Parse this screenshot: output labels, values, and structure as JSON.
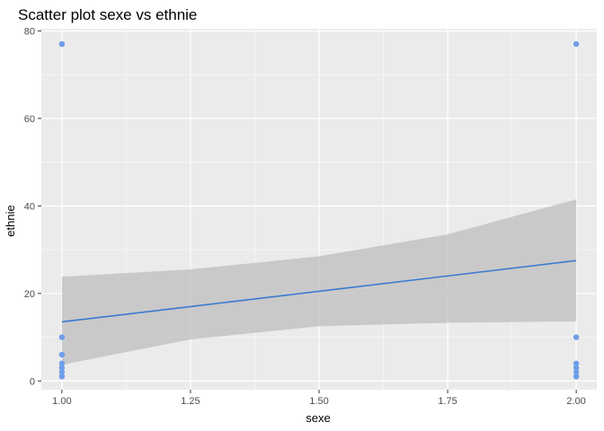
{
  "chart_data": {
    "type": "scatter",
    "title": "Scatter plot sexe vs ethnie",
    "xlabel": "sexe",
    "ylabel": "ethnie",
    "xlim": [
      0.96,
      2.04
    ],
    "ylim": [
      -2,
      80.5
    ],
    "x_ticks": [
      1.0,
      1.25,
      1.5,
      1.75,
      2.0
    ],
    "x_tick_labels": [
      "1.00",
      "1.25",
      "1.50",
      "1.75",
      "2.00"
    ],
    "y_ticks": [
      0,
      20,
      40,
      60,
      80
    ],
    "y_tick_labels": [
      "0",
      "20",
      "40",
      "60",
      "80"
    ],
    "grid": true,
    "points": [
      {
        "x": 1,
        "y": 77
      },
      {
        "x": 1,
        "y": 10
      },
      {
        "x": 1,
        "y": 6
      },
      {
        "x": 1,
        "y": 4
      },
      {
        "x": 1,
        "y": 3
      },
      {
        "x": 1,
        "y": 2
      },
      {
        "x": 1,
        "y": 1
      },
      {
        "x": 2,
        "y": 77
      },
      {
        "x": 2,
        "y": 10
      },
      {
        "x": 2,
        "y": 4
      },
      {
        "x": 2,
        "y": 3
      },
      {
        "x": 2,
        "y": 2
      },
      {
        "x": 2,
        "y": 1
      }
    ],
    "trend_line": {
      "x": [
        1,
        2
      ],
      "y": [
        13.5,
        27.5
      ]
    },
    "confidence_band": {
      "x": [
        1.0,
        1.25,
        1.5,
        1.75,
        2.0
      ],
      "upper": [
        23.8,
        25.5,
        28.5,
        33.5,
        41.5
      ],
      "lower": [
        3.7,
        9.5,
        12.5,
        13.3,
        13.6
      ]
    },
    "colors": {
      "point": "#6f9de8",
      "line": "#3a7ad0",
      "band": "#bdbdbd",
      "panel": "#ebebeb",
      "grid": "#ffffff"
    }
  }
}
